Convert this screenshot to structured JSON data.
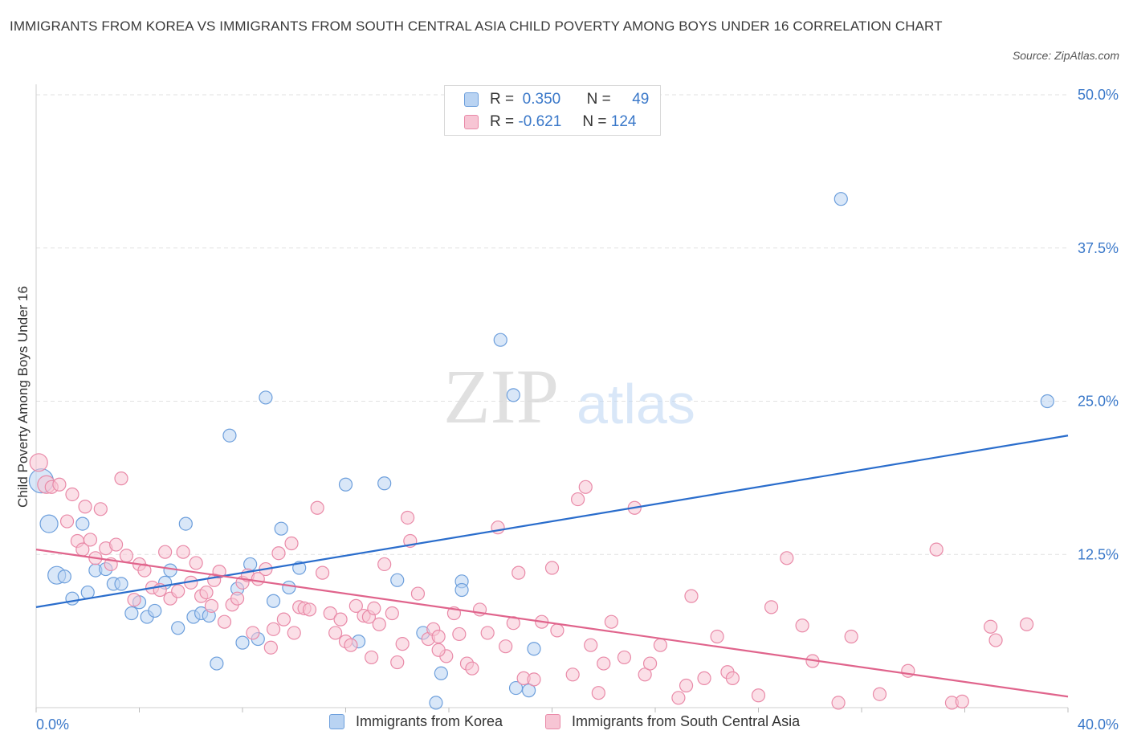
{
  "title": "IMMIGRANTS FROM KOREA VS IMMIGRANTS FROM SOUTH CENTRAL ASIA CHILD POVERTY AMONG BOYS UNDER 16 CORRELATION CHART",
  "source": "Source: ZipAtlas.com",
  "watermark": {
    "zip": "ZIP",
    "atlas": "atlas"
  },
  "legend_top": {
    "rows": [
      {
        "r_label": "R =",
        "r_value": "0.350",
        "n_label": "N =",
        "n_value": "49"
      },
      {
        "r_label": "R =",
        "r_value": "-0.621",
        "n_label": "N =",
        "n_value": "124"
      }
    ]
  },
  "colors": {
    "blue_fill": "#b9d3f2",
    "blue_stroke": "#6d9fdc",
    "blue_line": "#2a6dcc",
    "pink_fill": "#f7c5d4",
    "pink_stroke": "#e98aa8",
    "pink_line": "#e0648c",
    "tick_label": "#3a78c9",
    "grid": "#e2e2e2"
  },
  "chart_data": {
    "type": "scatter",
    "title": "IMMIGRANTS FROM KOREA VS IMMIGRANTS FROM SOUTH CENTRAL ASIA CHILD POVERTY AMONG BOYS UNDER 16 CORRELATION CHART",
    "xlabel": "",
    "ylabel": "Child Poverty Among Boys Under 16",
    "xlim": [
      0,
      40
    ],
    "ylim": [
      0,
      50
    ],
    "x_tick_labels": [
      "0.0%",
      "40.0%"
    ],
    "y_ticks": [
      12.5,
      25.0,
      37.5,
      50.0
    ],
    "y_tick_labels": [
      "12.5%",
      "25.0%",
      "37.5%",
      "50.0%"
    ],
    "grid": true,
    "legend_position": "bottom",
    "series": [
      {
        "name": "Immigrants from Korea",
        "color": "#6d9fdc",
        "r": 0.35,
        "n": 49,
        "trend": [
          [
            0,
            8.2
          ],
          [
            40,
            22.2
          ]
        ],
        "points": [
          [
            0.2,
            18.5,
            "big"
          ],
          [
            0.5,
            15.0,
            "med"
          ],
          [
            0.8,
            10.8,
            "med"
          ],
          [
            1.1,
            10.7
          ],
          [
            1.4,
            8.9
          ],
          [
            1.8,
            15.0
          ],
          [
            2.0,
            9.4
          ],
          [
            2.3,
            11.2
          ],
          [
            2.7,
            11.3
          ],
          [
            3.0,
            10.1
          ],
          [
            3.3,
            10.1
          ],
          [
            3.7,
            7.7
          ],
          [
            4.0,
            8.6
          ],
          [
            4.3,
            7.4
          ],
          [
            4.6,
            7.9
          ],
          [
            5.0,
            10.2
          ],
          [
            5.2,
            11.2
          ],
          [
            5.5,
            6.5
          ],
          [
            5.8,
            15.0
          ],
          [
            6.1,
            7.4
          ],
          [
            6.4,
            7.7
          ],
          [
            6.7,
            7.5
          ],
          [
            7.0,
            3.6
          ],
          [
            7.5,
            22.2
          ],
          [
            7.8,
            9.7
          ],
          [
            8.0,
            5.3
          ],
          [
            8.3,
            11.7
          ],
          [
            8.6,
            5.6
          ],
          [
            8.9,
            25.3
          ],
          [
            9.2,
            8.7
          ],
          [
            9.5,
            14.6
          ],
          [
            9.8,
            9.8
          ],
          [
            10.2,
            11.4
          ],
          [
            12.0,
            18.2
          ],
          [
            12.5,
            5.4
          ],
          [
            13.5,
            18.3
          ],
          [
            14.0,
            10.4
          ],
          [
            15.0,
            6.1
          ],
          [
            15.5,
            0.4
          ],
          [
            15.7,
            2.8
          ],
          [
            16.5,
            10.3
          ],
          [
            16.5,
            9.6
          ],
          [
            18.0,
            30.0
          ],
          [
            18.5,
            25.5
          ],
          [
            18.6,
            1.6
          ],
          [
            19.1,
            1.4
          ],
          [
            19.3,
            4.8
          ],
          [
            31.2,
            41.5
          ],
          [
            39.2,
            25.0
          ]
        ]
      },
      {
        "name": "Immigrants from South Central Asia",
        "color": "#e98aa8",
        "r": -0.621,
        "n": 124,
        "trend": [
          [
            0,
            12.9
          ],
          [
            40,
            0.9
          ]
        ],
        "points": [
          [
            0.1,
            20.0,
            "med"
          ],
          [
            0.4,
            18.2,
            "med"
          ],
          [
            0.6,
            18.0
          ],
          [
            0.9,
            18.2
          ],
          [
            1.2,
            15.2
          ],
          [
            1.4,
            17.4
          ],
          [
            1.6,
            13.6
          ],
          [
            1.8,
            12.9
          ],
          [
            1.9,
            16.4
          ],
          [
            2.1,
            13.7
          ],
          [
            2.3,
            12.2
          ],
          [
            2.5,
            16.2
          ],
          [
            2.7,
            13.0
          ],
          [
            2.9,
            11.7
          ],
          [
            3.1,
            13.3
          ],
          [
            3.3,
            18.7
          ],
          [
            3.5,
            12.4
          ],
          [
            3.8,
            8.8
          ],
          [
            4.0,
            11.7
          ],
          [
            4.2,
            11.2
          ],
          [
            4.5,
            9.8
          ],
          [
            4.8,
            9.6
          ],
          [
            5.0,
            12.7
          ],
          [
            5.2,
            8.9
          ],
          [
            5.5,
            9.5
          ],
          [
            5.7,
            12.7
          ],
          [
            6.0,
            10.2
          ],
          [
            6.2,
            11.8
          ],
          [
            6.4,
            9.1
          ],
          [
            6.6,
            9.4
          ],
          [
            6.8,
            8.3
          ],
          [
            6.9,
            10.4
          ],
          [
            7.1,
            11.1
          ],
          [
            7.3,
            7.0
          ],
          [
            7.6,
            8.4
          ],
          [
            7.8,
            8.9
          ],
          [
            8.0,
            10.2
          ],
          [
            8.2,
            10.8
          ],
          [
            8.4,
            6.1
          ],
          [
            8.6,
            10.5
          ],
          [
            8.9,
            11.3
          ],
          [
            9.2,
            6.4
          ],
          [
            9.4,
            12.6
          ],
          [
            9.6,
            7.2
          ],
          [
            9.9,
            13.4
          ],
          [
            10.0,
            6.1
          ],
          [
            10.2,
            8.2
          ],
          [
            10.4,
            8.1
          ],
          [
            10.6,
            8.0
          ],
          [
            10.9,
            16.3
          ],
          [
            11.1,
            11.0
          ],
          [
            11.4,
            7.7
          ],
          [
            11.6,
            6.1
          ],
          [
            11.8,
            7.2
          ],
          [
            12.0,
            5.4
          ],
          [
            12.2,
            5.1
          ],
          [
            12.4,
            8.3
          ],
          [
            12.7,
            7.5
          ],
          [
            12.9,
            7.4
          ],
          [
            13.1,
            8.1
          ],
          [
            13.3,
            6.8
          ],
          [
            13.5,
            11.7
          ],
          [
            13.8,
            7.7
          ],
          [
            14.0,
            3.7
          ],
          [
            14.2,
            5.2
          ],
          [
            14.4,
            15.5
          ],
          [
            14.5,
            13.6
          ],
          [
            14.8,
            9.3
          ],
          [
            15.2,
            5.6
          ],
          [
            15.4,
            6.4
          ],
          [
            15.6,
            5.8
          ],
          [
            15.9,
            4.2
          ],
          [
            16.2,
            7.7
          ],
          [
            16.4,
            6.0
          ],
          [
            16.7,
            3.6
          ],
          [
            16.9,
            3.2
          ],
          [
            17.2,
            8.0
          ],
          [
            17.5,
            6.1
          ],
          [
            17.9,
            14.7
          ],
          [
            18.2,
            5.0
          ],
          [
            18.5,
            6.9
          ],
          [
            18.7,
            11.0
          ],
          [
            18.9,
            2.4
          ],
          [
            19.3,
            2.3
          ],
          [
            19.6,
            7.0
          ],
          [
            20.0,
            11.4
          ],
          [
            20.2,
            6.3
          ],
          [
            20.8,
            2.7
          ],
          [
            21.0,
            17.0
          ],
          [
            21.3,
            18.0
          ],
          [
            21.5,
            5.1
          ],
          [
            21.8,
            1.2
          ],
          [
            22.0,
            3.6
          ],
          [
            22.3,
            7.0
          ],
          [
            22.8,
            4.1
          ],
          [
            23.2,
            16.3
          ],
          [
            23.6,
            2.7
          ],
          [
            23.8,
            3.6
          ],
          [
            24.2,
            5.1
          ],
          [
            24.9,
            0.8
          ],
          [
            25.2,
            1.8
          ],
          [
            25.4,
            9.1
          ],
          [
            25.9,
            2.4
          ],
          [
            26.4,
            5.8
          ],
          [
            26.8,
            2.9
          ],
          [
            27.0,
            2.4
          ],
          [
            28.0,
            1.0
          ],
          [
            28.5,
            8.2
          ],
          [
            29.1,
            12.2
          ],
          [
            29.7,
            6.7
          ],
          [
            30.1,
            3.8
          ],
          [
            31.1,
            0.4
          ],
          [
            31.6,
            5.8
          ],
          [
            32.7,
            1.1
          ],
          [
            33.8,
            3.0
          ],
          [
            34.9,
            12.9
          ],
          [
            35.5,
            0.4
          ],
          [
            35.9,
            0.5
          ],
          [
            37.0,
            6.6
          ],
          [
            37.2,
            5.5
          ],
          [
            38.4,
            6.8
          ],
          [
            15.6,
            4.7
          ],
          [
            13.0,
            4.1
          ],
          [
            9.1,
            4.9
          ]
        ]
      }
    ]
  }
}
